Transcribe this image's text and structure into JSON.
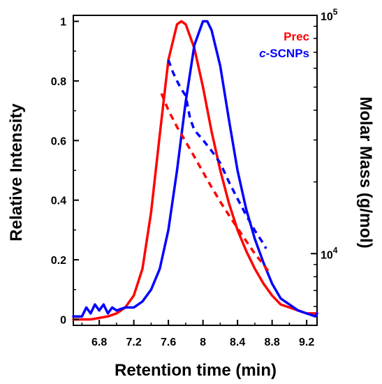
{
  "chart_data": {
    "type": "line",
    "xlabel": "Retention time (min)",
    "ylabel": "Relative Intensity",
    "y2label": "Molar Mass (g/mol)",
    "xlim": [
      6.5,
      9.32
    ],
    "ylim": [
      -0.02,
      1.02
    ],
    "y2lim": [
      5000,
      100000
    ],
    "y2scale": "log",
    "grid": false,
    "legend_placement": "top-right",
    "x_ticks": [
      "6.8",
      "7.2",
      "7.6",
      "8",
      "8.4",
      "8.8",
      "9.2"
    ],
    "y_ticks": [
      "0",
      "0.2",
      "0.4",
      "0.6",
      "0.8",
      "1"
    ],
    "y2_major_ticks": [
      {
        "value": 10000,
        "base": "10",
        "exp": "4"
      },
      {
        "value": 100000,
        "base": "10",
        "exp": "5"
      }
    ],
    "y2_minor_ticks": [
      6000,
      7000,
      8000,
      9000,
      20000,
      30000,
      40000,
      50000,
      60000,
      70000,
      80000,
      90000
    ],
    "series": [
      {
        "name": "Prec",
        "color": "#ff0000",
        "axis": "left",
        "style": "solid",
        "x": [
          6.5,
          6.7,
          6.9,
          7.0,
          7.1,
          7.2,
          7.3,
          7.4,
          7.5,
          7.6,
          7.7,
          7.75,
          7.8,
          7.9,
          8.0,
          8.1,
          8.2,
          8.3,
          8.4,
          8.5,
          8.6,
          8.7,
          8.8,
          8.9,
          9.0,
          9.1,
          9.2,
          9.32
        ],
        "y": [
          0.0,
          0.0,
          0.01,
          0.02,
          0.04,
          0.08,
          0.17,
          0.36,
          0.62,
          0.87,
          0.99,
          1.0,
          0.99,
          0.91,
          0.78,
          0.63,
          0.5,
          0.39,
          0.3,
          0.23,
          0.17,
          0.12,
          0.08,
          0.05,
          0.04,
          0.03,
          0.02,
          0.02
        ]
      },
      {
        "name": "c-SCNPs",
        "color": "#0000ff",
        "axis": "left",
        "style": "solid",
        "x": [
          6.5,
          6.6,
          6.65,
          6.7,
          6.75,
          6.8,
          6.85,
          6.9,
          6.95,
          7.0,
          7.1,
          7.2,
          7.3,
          7.4,
          7.5,
          7.6,
          7.7,
          7.8,
          7.9,
          8.0,
          8.05,
          8.1,
          8.2,
          8.3,
          8.4,
          8.5,
          8.6,
          8.7,
          8.8,
          8.9,
          9.0,
          9.1,
          9.2,
          9.3,
          9.32
        ],
        "y": [
          0.01,
          0.01,
          0.04,
          0.02,
          0.05,
          0.03,
          0.05,
          0.02,
          0.04,
          0.03,
          0.04,
          0.04,
          0.06,
          0.1,
          0.17,
          0.3,
          0.5,
          0.73,
          0.92,
          1.0,
          1.0,
          0.97,
          0.85,
          0.67,
          0.5,
          0.37,
          0.27,
          0.19,
          0.12,
          0.07,
          0.05,
          0.03,
          0.02,
          0.01,
          0.02
        ]
      },
      {
        "name": "Prec molar mass",
        "color": "#ff0000",
        "axis": "right",
        "style": "dashed",
        "x": [
          7.52,
          7.6,
          7.7,
          7.8,
          7.9,
          8.0,
          8.1,
          8.2,
          8.3,
          8.4,
          8.5,
          8.6,
          8.7,
          8.78
        ],
        "y": [
          47000,
          40000,
          34000,
          29500,
          25500,
          22000,
          19000,
          16500,
          14500,
          12800,
          11300,
          10000,
          9000,
          8200
        ]
      },
      {
        "name": "c-SCNPs molar mass",
        "color": "#0000ff",
        "axis": "right",
        "style": "dashed",
        "x": [
          7.6,
          7.65,
          7.7,
          7.75,
          7.8,
          7.85,
          7.9,
          8.0,
          8.1,
          8.2,
          8.3,
          8.4,
          8.5,
          8.6,
          8.7,
          8.73
        ],
        "y": [
          65000,
          58000,
          53000,
          49000,
          46000,
          37000,
          33000,
          30000,
          27000,
          24000,
          20000,
          17000,
          14500,
          12500,
          11000,
          10500
        ]
      }
    ],
    "legend": [
      {
        "label": "Prec",
        "color": "#ff0000"
      },
      {
        "label_prefix": "c",
        "label_rest": "-SCNPs",
        "color": "#0000ff"
      }
    ]
  }
}
